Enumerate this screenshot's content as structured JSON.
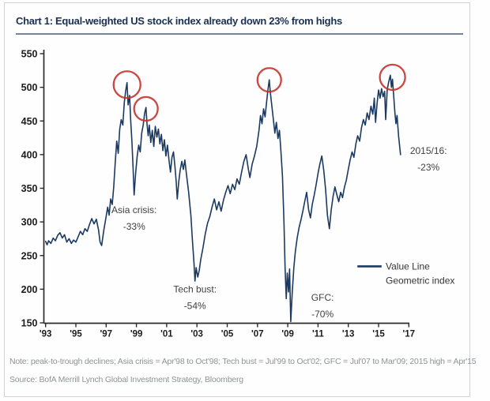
{
  "page": {
    "title": "Chart 1: Equal-weighted US stock index already down 23% from highs",
    "note": "Note: peak-to-trough declines; Asia crisis = Apr'98 to Oct'98; Tech bust = Jul'99 to Oct'02; GFC = Jul'07 to Mar'09; 2015 high = Apr'15",
    "source": "Source: BofA Merrill Lynch Global Investment Strategy, Bloomberg"
  },
  "chart_data": {
    "type": "line",
    "title": "Equal-weighted US stock index already down 23% from highs",
    "xlabel": "",
    "ylabel": "",
    "xlim": [
      1993,
      2017
    ],
    "ylim": [
      150,
      550
    ],
    "grid": false,
    "legend_position": "lower right",
    "x_tick_years": [
      1993,
      1995,
      1997,
      1999,
      2001,
      2003,
      2005,
      2007,
      2009,
      2011,
      2013,
      2015,
      2017
    ],
    "x_ticks": [
      "'93",
      "'95",
      "'97",
      "'99",
      "'01",
      "'03",
      "'05",
      "'07",
      "'09",
      "'11",
      "'13",
      "'15",
      "'17"
    ],
    "y_ticks": [
      550,
      500,
      450,
      400,
      350,
      300,
      250,
      200,
      150
    ],
    "line_color": "#1b3a61",
    "circle_color": "#c4332e",
    "legend": {
      "x1": 2013.6,
      "x2": 2015.2,
      "tx": 2015.47,
      "y": 234,
      "label_line1": "Value Line",
      "label_line2": "Geometric index"
    },
    "annotations": [
      {
        "lines": [
          "Asia crisis:",
          "-33%"
        ],
        "x": 1998.85,
        "y": 313
      },
      {
        "lines": [
          "Tech bust:",
          "-54%"
        ],
        "x": 2002.87,
        "y": 195
      },
      {
        "lines": [
          "GFC:",
          "-70%"
        ],
        "x": 2011.3,
        "y": 183
      },
      {
        "lines": [
          "2015/16:",
          "-23%"
        ],
        "x": 2018.3,
        "y": 401
      }
    ],
    "circles": [
      {
        "x": 1998.38,
        "y": 504,
        "r": 17
      },
      {
        "x": 1999.63,
        "y": 468,
        "r": 15
      },
      {
        "x": 2007.78,
        "y": 511,
        "r": 15
      },
      {
        "x": 2015.92,
        "y": 515,
        "r": 16
      }
    ],
    "series": [
      {
        "name": "Value Line Geometric index",
        "points": [
          [
            1993.0,
            271
          ],
          [
            1993.1,
            266
          ],
          [
            1993.2,
            272
          ],
          [
            1993.35,
            268
          ],
          [
            1993.5,
            276
          ],
          [
            1993.65,
            272
          ],
          [
            1993.8,
            280
          ],
          [
            1993.95,
            284
          ],
          [
            1994.1,
            276
          ],
          [
            1994.25,
            281
          ],
          [
            1994.4,
            270
          ],
          [
            1994.55,
            275
          ],
          [
            1994.7,
            268
          ],
          [
            1994.85,
            273
          ],
          [
            1995.0,
            270
          ],
          [
            1995.15,
            278
          ],
          [
            1995.3,
            286
          ],
          [
            1995.45,
            281
          ],
          [
            1995.6,
            290
          ],
          [
            1995.75,
            286
          ],
          [
            1995.9,
            296
          ],
          [
            1996.05,
            305
          ],
          [
            1996.2,
            297
          ],
          [
            1996.35,
            304
          ],
          [
            1996.5,
            288
          ],
          [
            1996.6,
            270
          ],
          [
            1996.7,
            265
          ],
          [
            1996.85,
            288
          ],
          [
            1997.0,
            308
          ],
          [
            1997.1,
            322
          ],
          [
            1997.2,
            310
          ],
          [
            1997.3,
            334
          ],
          [
            1997.4,
            326
          ],
          [
            1997.5,
            352
          ],
          [
            1997.6,
            388
          ],
          [
            1997.7,
            420
          ],
          [
            1997.8,
            402
          ],
          [
            1997.9,
            438
          ],
          [
            1998.0,
            452
          ],
          [
            1998.1,
            444
          ],
          [
            1998.2,
            478
          ],
          [
            1998.3,
            496
          ],
          [
            1998.38,
            507
          ],
          [
            1998.45,
            474
          ],
          [
            1998.55,
            488
          ],
          [
            1998.62,
            452
          ],
          [
            1998.7,
            420
          ],
          [
            1998.78,
            380
          ],
          [
            1998.85,
            340
          ],
          [
            1998.95,
            372
          ],
          [
            1999.05,
            398
          ],
          [
            1999.15,
            414
          ],
          [
            1999.25,
            404
          ],
          [
            1999.35,
            432
          ],
          [
            1999.45,
            444
          ],
          [
            1999.55,
            462
          ],
          [
            1999.63,
            470
          ],
          [
            1999.7,
            446
          ],
          [
            1999.78,
            428
          ],
          [
            1999.85,
            444
          ],
          [
            1999.95,
            418
          ],
          [
            2000.05,
            436
          ],
          [
            2000.15,
            412
          ],
          [
            2000.25,
            442
          ],
          [
            2000.35,
            426
          ],
          [
            2000.45,
            438
          ],
          [
            2000.55,
            416
          ],
          [
            2000.65,
            430
          ],
          [
            2000.75,
            406
          ],
          [
            2000.85,
            422
          ],
          [
            2000.95,
            398
          ],
          [
            2001.05,
            414
          ],
          [
            2001.15,
            392
          ],
          [
            2001.25,
            374
          ],
          [
            2001.35,
            396
          ],
          [
            2001.45,
            404
          ],
          [
            2001.55,
            382
          ],
          [
            2001.62,
            362
          ],
          [
            2001.7,
            334
          ],
          [
            2001.8,
            360
          ],
          [
            2001.9,
            378
          ],
          [
            2002.0,
            390
          ],
          [
            2002.1,
            378
          ],
          [
            2002.2,
            392
          ],
          [
            2002.3,
            372
          ],
          [
            2002.45,
            344
          ],
          [
            2002.6,
            310
          ],
          [
            2002.7,
            272
          ],
          [
            2002.8,
            240
          ],
          [
            2002.87,
            212
          ],
          [
            2002.95,
            232
          ],
          [
            2003.05,
            218
          ],
          [
            2003.15,
            228
          ],
          [
            2003.25,
            244
          ],
          [
            2003.4,
            262
          ],
          [
            2003.55,
            282
          ],
          [
            2003.7,
            298
          ],
          [
            2003.85,
            308
          ],
          [
            2004.0,
            322
          ],
          [
            2004.15,
            334
          ],
          [
            2004.3,
            318
          ],
          [
            2004.45,
            330
          ],
          [
            2004.6,
            316
          ],
          [
            2004.75,
            332
          ],
          [
            2004.9,
            344
          ],
          [
            2005.05,
            354
          ],
          [
            2005.2,
            342
          ],
          [
            2005.35,
            356
          ],
          [
            2005.5,
            348
          ],
          [
            2005.65,
            364
          ],
          [
            2005.8,
            356
          ],
          [
            2005.95,
            374
          ],
          [
            2006.1,
            390
          ],
          [
            2006.25,
            400
          ],
          [
            2006.4,
            378
          ],
          [
            2006.5,
            366
          ],
          [
            2006.65,
            386
          ],
          [
            2006.8,
            398
          ],
          [
            2006.95,
            412
          ],
          [
            2007.1,
            436
          ],
          [
            2007.2,
            458
          ],
          [
            2007.3,
            446
          ],
          [
            2007.4,
            468
          ],
          [
            2007.5,
            456
          ],
          [
            2007.6,
            478
          ],
          [
            2007.7,
            498
          ],
          [
            2007.78,
            511
          ],
          [
            2007.85,
            492
          ],
          [
            2007.95,
            472
          ],
          [
            2008.05,
            452
          ],
          [
            2008.15,
            432
          ],
          [
            2008.25,
            448
          ],
          [
            2008.35,
            424
          ],
          [
            2008.45,
            436
          ],
          [
            2008.55,
            404
          ],
          [
            2008.65,
            368
          ],
          [
            2008.75,
            300
          ],
          [
            2008.82,
            232
          ],
          [
            2008.9,
            186
          ],
          [
            2008.97,
            224
          ],
          [
            2009.05,
            196
          ],
          [
            2009.12,
            230
          ],
          [
            2009.2,
            152
          ],
          [
            2009.3,
            196
          ],
          [
            2009.4,
            232
          ],
          [
            2009.5,
            256
          ],
          [
            2009.62,
            276
          ],
          [
            2009.75,
            292
          ],
          [
            2009.88,
            304
          ],
          [
            2010.0,
            316
          ],
          [
            2010.12,
            330
          ],
          [
            2010.25,
            344
          ],
          [
            2010.38,
            318
          ],
          [
            2010.5,
            306
          ],
          [
            2010.62,
            326
          ],
          [
            2010.75,
            340
          ],
          [
            2010.88,
            356
          ],
          [
            2011.0,
            372
          ],
          [
            2011.12,
            386
          ],
          [
            2011.25,
            398
          ],
          [
            2011.38,
            376
          ],
          [
            2011.5,
            348
          ],
          [
            2011.62,
            310
          ],
          [
            2011.75,
            290
          ],
          [
            2011.87,
            318
          ],
          [
            2012.0,
            338
          ],
          [
            2012.12,
            352
          ],
          [
            2012.25,
            340
          ],
          [
            2012.37,
            330
          ],
          [
            2012.5,
            344
          ],
          [
            2012.62,
            336
          ],
          [
            2012.75,
            352
          ],
          [
            2012.87,
            362
          ],
          [
            2013.0,
            378
          ],
          [
            2013.12,
            392
          ],
          [
            2013.25,
            404
          ],
          [
            2013.37,
            396
          ],
          [
            2013.5,
            416
          ],
          [
            2013.62,
            428
          ],
          [
            2013.75,
            420
          ],
          [
            2013.87,
            440
          ],
          [
            2014.0,
            452
          ],
          [
            2014.12,
            444
          ],
          [
            2014.25,
            462
          ],
          [
            2014.37,
            452
          ],
          [
            2014.5,
            472
          ],
          [
            2014.62,
            460
          ],
          [
            2014.72,
            484
          ],
          [
            2014.8,
            448
          ],
          [
            2014.9,
            476
          ],
          [
            2015.0,
            496
          ],
          [
            2015.1,
            484
          ],
          [
            2015.2,
            498
          ],
          [
            2015.3,
            486
          ],
          [
            2015.4,
            494
          ],
          [
            2015.47,
            452
          ],
          [
            2015.57,
            496
          ],
          [
            2015.67,
            508
          ],
          [
            2015.78,
            518
          ],
          [
            2015.85,
            500
          ],
          [
            2015.92,
            512
          ],
          [
            2016.0,
            488
          ],
          [
            2016.08,
            462
          ],
          [
            2016.15,
            446
          ],
          [
            2016.22,
            458
          ],
          [
            2016.32,
            428
          ],
          [
            2016.45,
            400
          ]
        ]
      }
    ]
  }
}
